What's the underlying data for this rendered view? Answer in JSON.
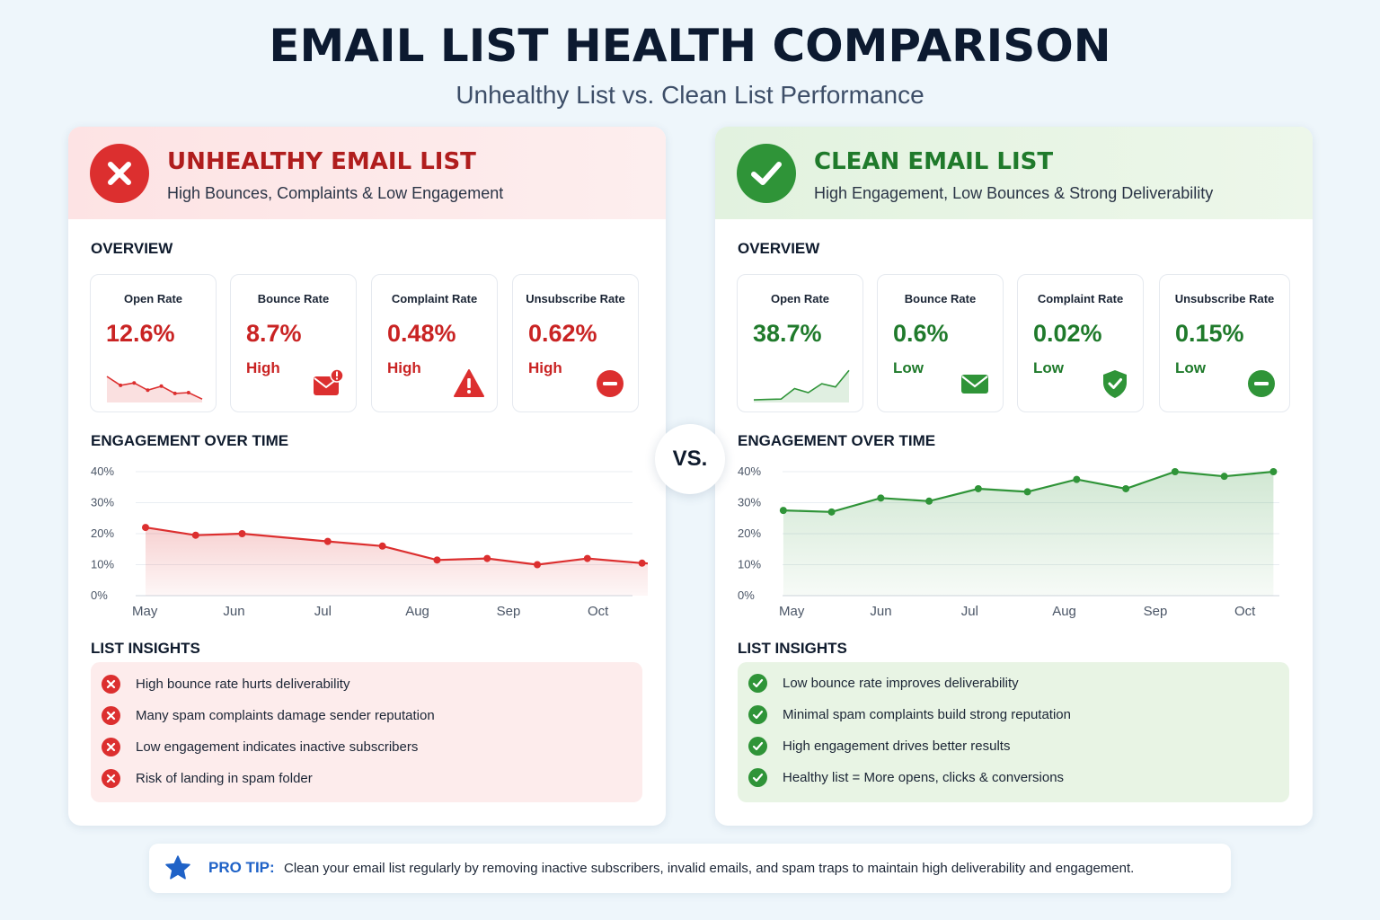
{
  "title": "EMAIL LIST HEALTH COMPARISON",
  "subtitle": "Unhealthy List vs. Clean List Performance",
  "vs_label": "VS.",
  "colors": {
    "bad": "#dc2f2f",
    "good": "#2f9438",
    "tip": "#1f62c7"
  },
  "unhealthy": {
    "title": "UNHEALTHY EMAIL LIST",
    "subtitle": "High Bounces, Complaints & Low Engagement",
    "badge_icon": "x-circle-icon",
    "overview_label": "OVERVIEW",
    "metrics": [
      {
        "label": "Open Rate",
        "value": "12.6%",
        "level": "",
        "icon": "sparkline-declining"
      },
      {
        "label": "Bounce Rate",
        "value": "8.7%",
        "level": "High",
        "icon": "mail-alert-icon"
      },
      {
        "label": "Complaint Rate",
        "value": "0.48%",
        "level": "High",
        "icon": "warning-triangle-icon"
      },
      {
        "label": "Unsubscribe Rate",
        "value": "0.62%",
        "level": "High",
        "icon": "minus-circle-icon"
      }
    ],
    "open_rate_sparkline": [
      6,
      3.8,
      4.4,
      2.6,
      3.6,
      1.8,
      2,
      0.4
    ],
    "engagement_label": "ENGAGEMENT OVER TIME",
    "insights_label": "LIST INSIGHTS",
    "insights": [
      "High bounce rate hurts deliverability",
      "Many spam complaints damage sender reputation",
      "Low engagement indicates inactive subscribers",
      "Risk of landing in spam folder"
    ]
  },
  "clean": {
    "title": "CLEAN EMAIL LIST",
    "subtitle": "High Engagement, Low Bounces & Strong Deliverability",
    "badge_icon": "check-circle-icon",
    "overview_label": "OVERVIEW",
    "metrics": [
      {
        "label": "Open Rate",
        "value": "38.7%",
        "level": "",
        "icon": "sparkline-rising"
      },
      {
        "label": "Bounce Rate",
        "value": "0.6%",
        "level": "Low",
        "icon": "mail-icon"
      },
      {
        "label": "Complaint Rate",
        "value": "0.02%",
        "level": "Low",
        "icon": "shield-check-icon"
      },
      {
        "label": "Unsubscribe Rate",
        "value": "0.15%",
        "level": "Low",
        "icon": "minus-circle-icon"
      }
    ],
    "open_rate_sparkline": [
      0.2,
      0.3,
      0.4,
      3,
      2,
      4.2,
      3.4,
      7.5
    ],
    "engagement_label": "ENGAGEMENT OVER TIME",
    "insights_label": "LIST INSIGHTS",
    "insights": [
      "Low bounce rate improves deliverability",
      "Minimal spam complaints build strong reputation",
      "High engagement drives better results",
      "Healthy list = More opens, clicks & conversions"
    ]
  },
  "tip": {
    "label": "PRO TIP:",
    "text": "Clean your email list regularly by removing inactive subscribers, invalid emails, and spam traps to maintain high deliverability and engagement.",
    "icon": "star-icon"
  },
  "chart_data": [
    {
      "type": "area",
      "title": "ENGAGEMENT OVER TIME",
      "categories": [
        "May",
        "Jun",
        "Jul",
        "Aug",
        "Sep",
        "Oct"
      ],
      "yticks": [
        "0%",
        "10%",
        "20%",
        "30%",
        "40%"
      ],
      "ylim": [
        0,
        40
      ],
      "grid": true,
      "color": "#dc2f2f",
      "points": [
        {
          "x": 0.0,
          "y": 22
        },
        {
          "x": 0.55,
          "y": 19.5
        },
        {
          "x": 1.06,
          "y": 20
        },
        {
          "x": 2.0,
          "y": 17.5
        },
        {
          "x": 2.6,
          "y": 16
        },
        {
          "x": 3.2,
          "y": 11.5
        },
        {
          "x": 3.75,
          "y": 12
        },
        {
          "x": 4.3,
          "y": 10
        },
        {
          "x": 4.85,
          "y": 12
        },
        {
          "x": 5.45,
          "y": 10.5
        },
        {
          "x": 5.8,
          "y": 10
        }
      ]
    },
    {
      "type": "area",
      "title": "ENGAGEMENT OVER TIME",
      "categories": [
        "May",
        "Jun",
        "Jul",
        "Aug",
        "Sep",
        "Oct"
      ],
      "yticks": [
        "0%",
        "10%",
        "20%",
        "30%",
        "40%"
      ],
      "ylim": [
        0,
        40
      ],
      "grid": true,
      "color": "#2f9438",
      "points": [
        {
          "x": -0.1,
          "y": 27.5
        },
        {
          "x": 0.43,
          "y": 27
        },
        {
          "x": 0.97,
          "y": 31.5
        },
        {
          "x": 1.5,
          "y": 30.5
        },
        {
          "x": 2.04,
          "y": 34.5
        },
        {
          "x": 2.58,
          "y": 33.5
        },
        {
          "x": 3.12,
          "y": 37.5
        },
        {
          "x": 3.66,
          "y": 34.5
        },
        {
          "x": 4.2,
          "y": 40
        },
        {
          "x": 4.74,
          "y": 38.5
        },
        {
          "x": 5.28,
          "y": 40
        }
      ]
    }
  ]
}
